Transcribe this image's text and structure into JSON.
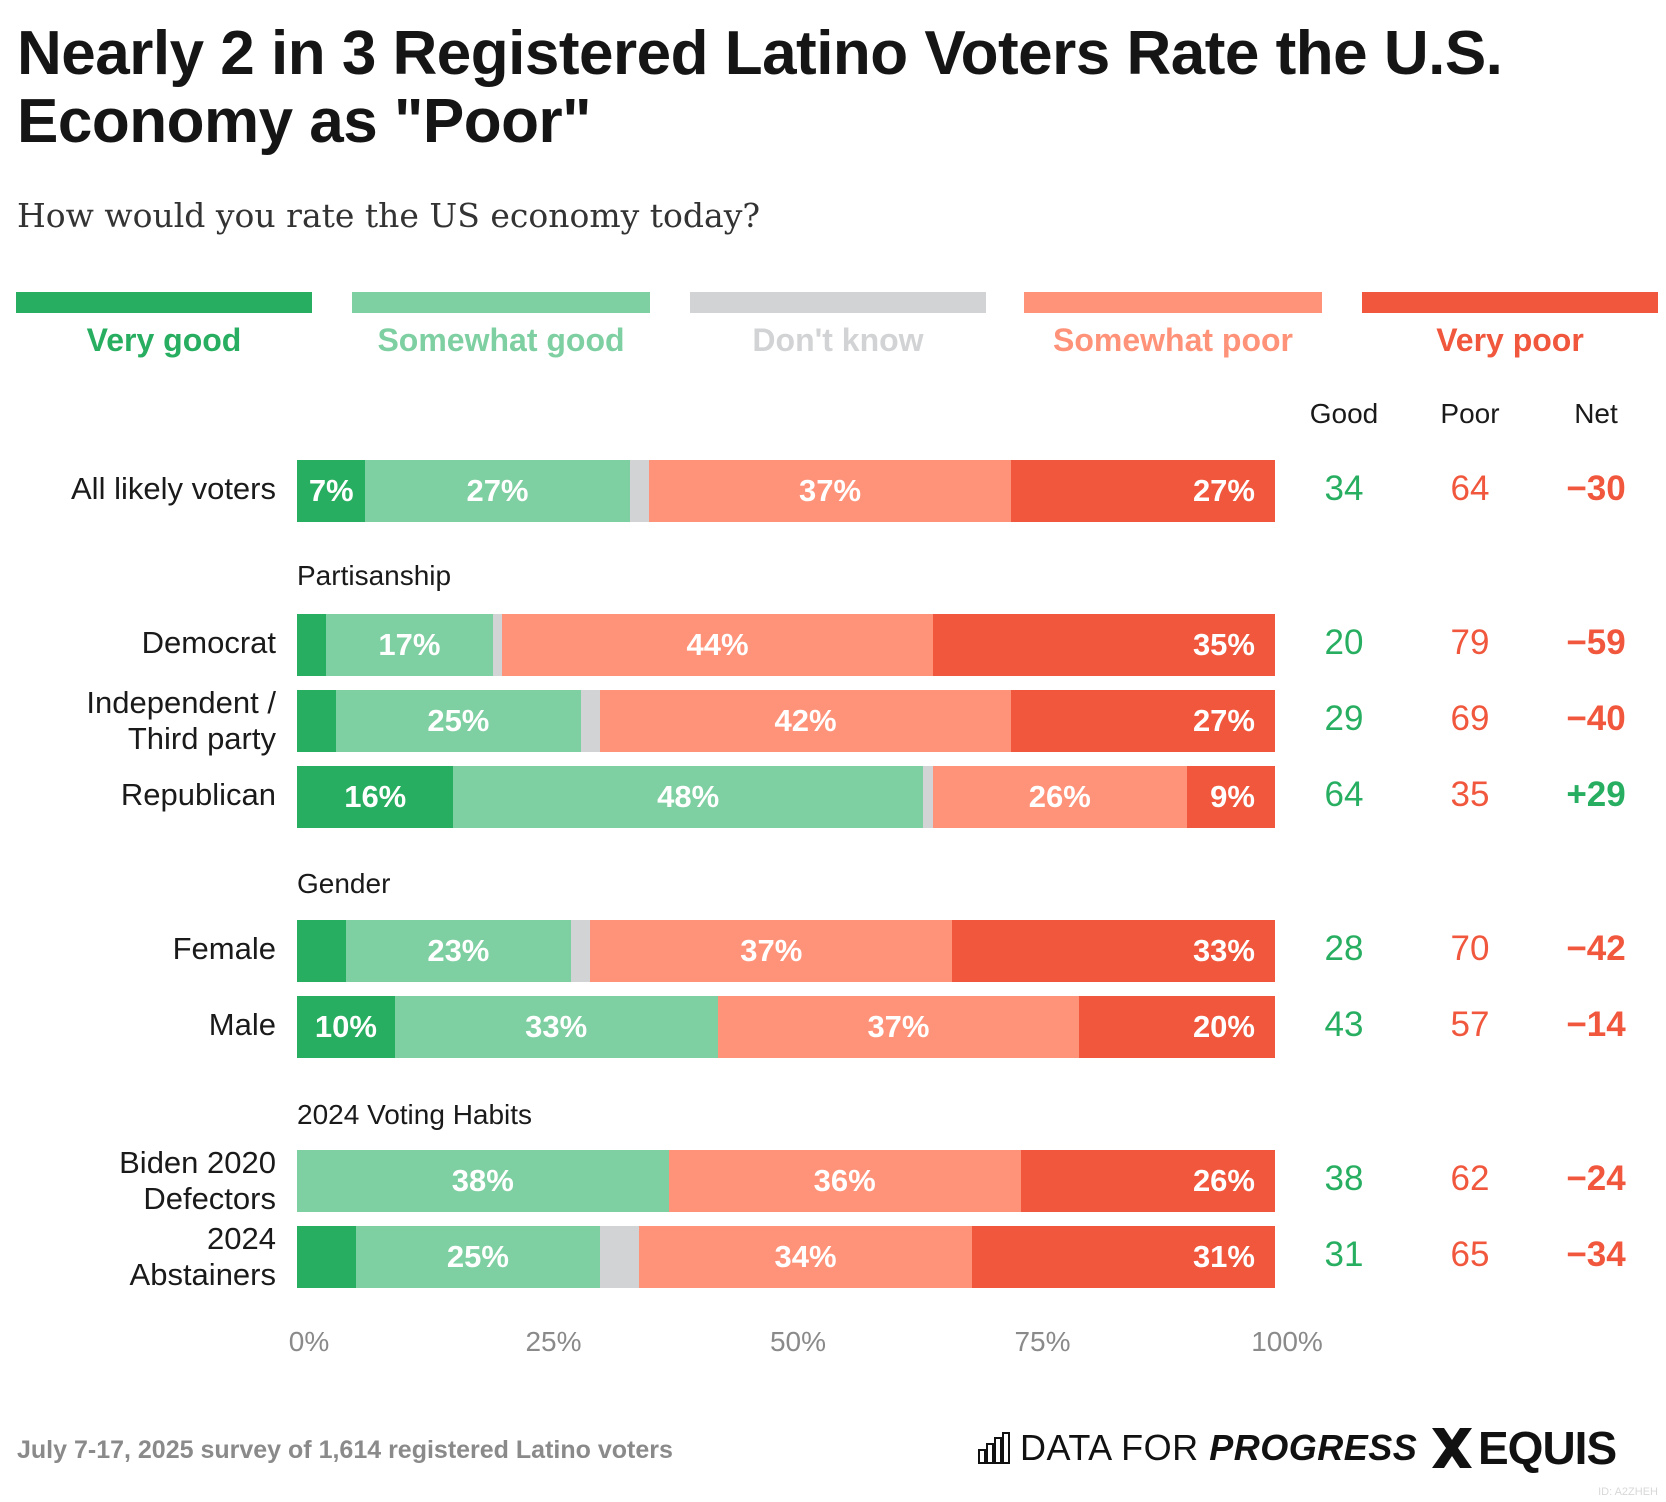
{
  "header": {
    "title": "Nearly 2 in 3 Registered Latino Voters Rate the U.S. Economy as \"Poor\"",
    "subtitle": "How would you rate the US economy today?"
  },
  "legend": [
    {
      "key": "very_good",
      "label": "Very good",
      "color": "#27ae60"
    },
    {
      "key": "somewhat_good",
      "label": "Somewhat good",
      "color": "#7ecfa1"
    },
    {
      "key": "dont_know",
      "label": "Don't know",
      "color": "#d2d3d4"
    },
    {
      "key": "somewhat_poor",
      "label": "Somewhat poor",
      "color": "#ff937a"
    },
    {
      "key": "very_poor",
      "label": "Very poor",
      "color": "#f0573d"
    }
  ],
  "columns": {
    "good": "Good",
    "poor": "Poor",
    "net": "Net"
  },
  "colors": {
    "good_text": "#27ae60",
    "poor_text": "#f0573d",
    "net_positive": "#27ae60",
    "net_negative": "#f0573d"
  },
  "chart_data": {
    "type": "bar",
    "orientation": "horizontal-stacked-100",
    "title": "Nearly 2 in 3 Registered Latino Voters Rate the U.S. Economy as \"Poor\"",
    "subtitle": "How would you rate the US economy today?",
    "xlabel": "",
    "ylabel": "",
    "xlim": [
      0,
      100
    ],
    "x_ticks": [
      "0%",
      "25%",
      "50%",
      "75%",
      "100%"
    ],
    "legend_position": "top",
    "series_names": [
      "Very good",
      "Somewhat good",
      "Don't know",
      "Somewhat poor",
      "Very poor"
    ],
    "groups": [
      {
        "label": "",
        "rows": [
          {
            "label": "All likely voters",
            "values": [
              7,
              27,
              2,
              37,
              27
            ],
            "shown_labels": [
              "7%",
              "27%",
              "",
              "37%",
              "27%"
            ],
            "good": "34",
            "poor": "64",
            "net": "−30"
          }
        ]
      },
      {
        "label": "Partisanship",
        "rows": [
          {
            "label": "Democrat",
            "values": [
              3,
              17,
              1,
              44,
              35
            ],
            "shown_labels": [
              "",
              "17%",
              "",
              "44%",
              "35%"
            ],
            "good": "20",
            "poor": "79",
            "net": "−59"
          },
          {
            "label": "Independent / Third party",
            "label_lines": [
              "Independent /",
              "Third party"
            ],
            "values": [
              4,
              25,
              2,
              42,
              27
            ],
            "shown_labels": [
              "",
              "25%",
              "",
              "42%",
              "27%"
            ],
            "good": "29",
            "poor": "69",
            "net": "−40"
          },
          {
            "label": "Republican",
            "values": [
              16,
              48,
              1,
              26,
              9
            ],
            "shown_labels": [
              "16%",
              "48%",
              "",
              "26%",
              "9%"
            ],
            "good": "64",
            "poor": "35",
            "net": "+29"
          }
        ]
      },
      {
        "label": "Gender",
        "rows": [
          {
            "label": "Female",
            "values": [
              5,
              23,
              2,
              37,
              33
            ],
            "shown_labels": [
              "",
              "23%",
              "",
              "37%",
              "33%"
            ],
            "good": "28",
            "poor": "70",
            "net": "−42"
          },
          {
            "label": "Male",
            "values": [
              10,
              33,
              0,
              37,
              20
            ],
            "shown_labels": [
              "10%",
              "33%",
              "",
              "37%",
              "20%"
            ],
            "good": "43",
            "poor": "57",
            "net": "−14"
          }
        ]
      },
      {
        "label": "2024 Voting Habits",
        "rows": [
          {
            "label": "Biden 2020 Defectors",
            "label_lines": [
              "Biden 2020",
              "Defectors"
            ],
            "values": [
              0,
              38,
              0,
              36,
              26
            ],
            "shown_labels": [
              "",
              "38%",
              "",
              "36%",
              "26%"
            ],
            "good": "38",
            "poor": "62",
            "net": "−24"
          },
          {
            "label": "2024 Abstainers",
            "label_lines": [
              "2024",
              "Abstainers"
            ],
            "values": [
              6,
              25,
              4,
              34,
              31
            ],
            "shown_labels": [
              "",
              "25%",
              "",
              "34%",
              "31%"
            ],
            "good": "31",
            "poor": "65",
            "net": "−34"
          }
        ]
      }
    ]
  },
  "footer": {
    "note": "July 7-17, 2025 survey of 1,614 registered Latino voters",
    "logo1_light": "DATA FOR ",
    "logo1_bold": "PROGRESS",
    "logo2": "EQUIS",
    "id_tag": "ID: A2ZHEH"
  }
}
